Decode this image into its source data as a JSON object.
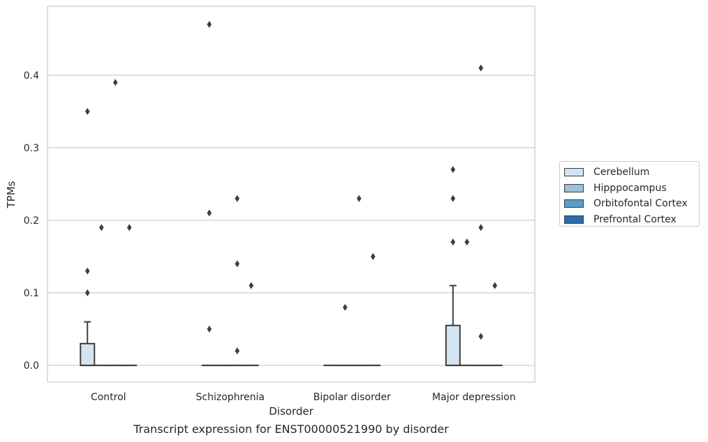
{
  "chart_data": {
    "type": "box",
    "title": "Transcript expression for ENST00000521990 by disorder",
    "xlabel": "Disorder",
    "ylabel": "TPMs",
    "ylim": [
      -0.023,
      0.495
    ],
    "yticks": [
      "0.0",
      "0.1",
      "0.2",
      "0.3",
      "0.4"
    ],
    "categories": [
      "Control",
      "Schizophrenia",
      "Bipolar disorder",
      "Major depression"
    ],
    "grid": true,
    "legend_position": "right",
    "series": [
      {
        "name": "Cerebellum",
        "color": "#d4e3f1",
        "boxes": [
          {
            "q1": 0.0,
            "median": 0.0,
            "q3": 0.03,
            "whisker_low": 0.0,
            "whisker_high": 0.06,
            "outliers": [
              0.1,
              0.13,
              0.35
            ]
          },
          {
            "q1": 0.0,
            "median": 0.0,
            "q3": 0.0,
            "whisker_low": 0.0,
            "whisker_high": 0.0,
            "outliers": [
              0.05,
              0.21,
              0.47
            ]
          },
          {
            "q1": 0.0,
            "median": 0.0,
            "q3": 0.0,
            "whisker_low": 0.0,
            "whisker_high": 0.0,
            "outliers": []
          },
          {
            "q1": 0.0,
            "median": 0.0,
            "q3": 0.055,
            "whisker_low": 0.0,
            "whisker_high": 0.11,
            "outliers": [
              0.17,
              0.23,
              0.27
            ]
          }
        ]
      },
      {
        "name": "Hipppocampus",
        "color": "#9ac3dd",
        "boxes": [
          {
            "q1": 0.0,
            "median": 0.0,
            "q3": 0.0,
            "whisker_low": 0.0,
            "whisker_high": 0.0,
            "outliers": [
              0.19
            ]
          },
          {
            "q1": 0.0,
            "median": 0.0,
            "q3": 0.0,
            "whisker_low": 0.0,
            "whisker_high": 0.0,
            "outliers": []
          },
          {
            "q1": 0.0,
            "median": 0.0,
            "q3": 0.0,
            "whisker_low": 0.0,
            "whisker_high": 0.0,
            "outliers": [
              0.08
            ]
          },
          {
            "q1": 0.0,
            "median": 0.0,
            "q3": 0.0,
            "whisker_low": 0.0,
            "whisker_high": 0.0,
            "outliers": [
              0.17
            ]
          }
        ]
      },
      {
        "name": "Orbitofontal Cortex",
        "color": "#5a9ec9",
        "boxes": [
          {
            "q1": 0.0,
            "median": 0.0,
            "q3": 0.0,
            "whisker_low": 0.0,
            "whisker_high": 0.0,
            "outliers": [
              0.39
            ]
          },
          {
            "q1": 0.0,
            "median": 0.0,
            "q3": 0.0,
            "whisker_low": 0.0,
            "whisker_high": 0.0,
            "outliers": [
              0.02,
              0.14,
              0.23
            ]
          },
          {
            "q1": 0.0,
            "median": 0.0,
            "q3": 0.0,
            "whisker_low": 0.0,
            "whisker_high": 0.0,
            "outliers": [
              0.23
            ]
          },
          {
            "q1": 0.0,
            "median": 0.0,
            "q3": 0.0,
            "whisker_low": 0.0,
            "whisker_high": 0.0,
            "outliers": [
              0.04,
              0.19,
              0.41
            ]
          }
        ]
      },
      {
        "name": "Prefrontal Cortex",
        "color": "#2b6ca9",
        "boxes": [
          {
            "q1": 0.0,
            "median": 0.0,
            "q3": 0.0,
            "whisker_low": 0.0,
            "whisker_high": 0.0,
            "outliers": [
              0.19
            ]
          },
          {
            "q1": 0.0,
            "median": 0.0,
            "q3": 0.0,
            "whisker_low": 0.0,
            "whisker_high": 0.0,
            "outliers": [
              0.11
            ]
          },
          {
            "q1": 0.0,
            "median": 0.0,
            "q3": 0.0,
            "whisker_low": 0.0,
            "whisker_high": 0.0,
            "outliers": [
              0.15
            ]
          },
          {
            "q1": 0.0,
            "median": 0.0,
            "q3": 0.0,
            "whisker_low": 0.0,
            "whisker_high": 0.0,
            "outliers": [
              0.11
            ]
          }
        ]
      }
    ]
  }
}
